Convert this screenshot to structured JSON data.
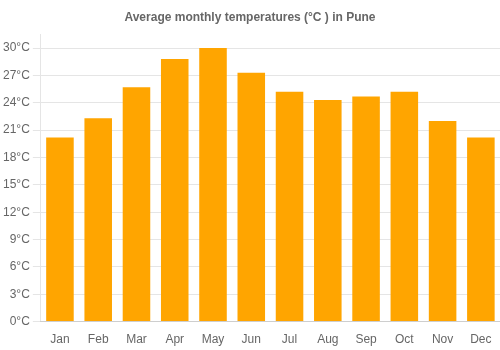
{
  "chart_data": {
    "type": "bar",
    "title": "Average monthly temperatures (°C ) in Pune",
    "categories": [
      "Jan",
      "Feb",
      "Mar",
      "Apr",
      "May",
      "Jun",
      "Jul",
      "Aug",
      "Sep",
      "Oct",
      "Nov",
      "Dec"
    ],
    "values": [
      20.2,
      22.3,
      25.7,
      28.8,
      30.0,
      27.3,
      25.2,
      24.3,
      24.7,
      25.2,
      22.0,
      20.2
    ],
    "color": "#FFA500",
    "ylim": [
      0,
      31.5
    ],
    "yticks": [
      {
        "value": 0,
        "label": "0°C"
      },
      {
        "value": 3,
        "label": "3°C"
      },
      {
        "value": 6,
        "label": "6°C"
      },
      {
        "value": 9,
        "label": "9°C"
      },
      {
        "value": 12,
        "label": "12°C"
      },
      {
        "value": 15,
        "label": "15°C"
      },
      {
        "value": 18,
        "label": "18°C"
      },
      {
        "value": 21,
        "label": "21°C"
      },
      {
        "value": 24,
        "label": "24°C"
      },
      {
        "value": 27,
        "label": "27°C"
      },
      {
        "value": 30,
        "label": "30°C"
      }
    ],
    "grid": true
  }
}
